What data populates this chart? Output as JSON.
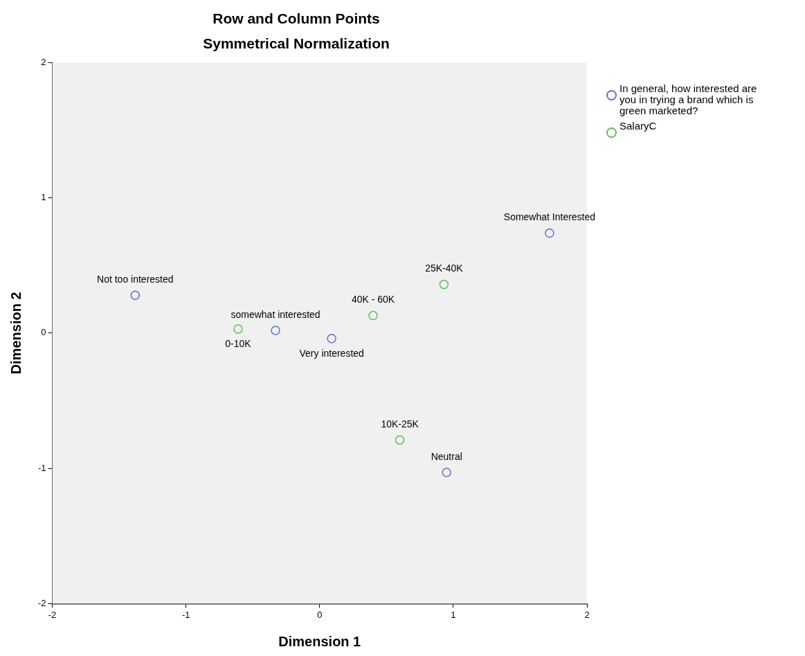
{
  "chart_data": {
    "type": "scatter",
    "title": "Row and Column Points",
    "subtitle": "Symmetrical Normalization",
    "xlabel": "Dimension 1",
    "ylabel": "Dimension 2",
    "xlim": [
      -2,
      2
    ],
    "xticks": [
      -2,
      -1,
      0,
      1,
      2
    ],
    "ylim": [
      -2,
      2
    ],
    "yticks": [
      -2,
      -1,
      0,
      1,
      2
    ],
    "legend": "top right",
    "marker": "circle",
    "series": [
      {
        "name": "In general, how interested are you in trying a brand which is green marketed?",
        "color": "#5c6fd1",
        "x": [
          1.72,
          -1.38,
          -0.33,
          0.09,
          0.95
        ],
        "values": [
          0.74,
          0.28,
          0.02,
          -0.04,
          -1.03
        ],
        "value_labels": [
          "Somewhat Interested",
          "Not too interested",
          "somewhat interested",
          "Very interested",
          "Neutral"
        ]
      },
      {
        "name": "SalaryC",
        "color": "#52c552",
        "x": [
          -0.61,
          0.4,
          0.93,
          0.6
        ],
        "values": [
          0.03,
          0.13,
          0.36,
          -0.79
        ],
        "value_labels": [
          "0-10K",
          "40K - 60K",
          "25K-40K",
          "10K-25K"
        ]
      }
    ]
  }
}
